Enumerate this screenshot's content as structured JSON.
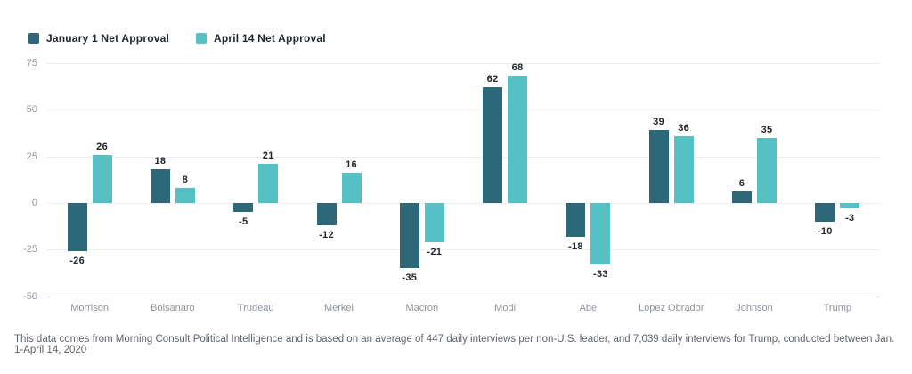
{
  "chart_data": {
    "type": "bar",
    "title": "",
    "categories": [
      "Morrison",
      "Bolsanaro",
      "Trudeau",
      "Merkel",
      "Macron",
      "Modi",
      "Abe",
      "Lopez Obrador",
      "Johnson",
      "Trump"
    ],
    "series": [
      {
        "name": "January 1 Net Approval",
        "color": "#2d6878",
        "values": [
          -26,
          18,
          -5,
          -12,
          -35,
          62,
          -18,
          39,
          6,
          -10
        ]
      },
      {
        "name": "April 14 Net Approval",
        "color": "#55c1c4",
        "values": [
          26,
          8,
          21,
          16,
          -21,
          68,
          -33,
          36,
          35,
          -3
        ]
      }
    ],
    "xlabel": "",
    "ylabel": "",
    "ylim": [
      -50,
      75
    ],
    "yticks": [
      75,
      50,
      25,
      0,
      -25,
      -50
    ],
    "grid": true,
    "legend_position": "top-left",
    "value_labels": true,
    "colors": {
      "gridline": "#ededf0",
      "baseline": "#ccd3e6",
      "axis_text": "#8f959d",
      "value_text": "#20252c"
    }
  },
  "footer": {
    "note": "This data comes from Morning Consult Political Intelligence and is based on an average of 447 daily interviews per non-U.S. leader, and 7,039 daily interviews for Trump, conducted between Jan. 1-April 14, 2020"
  }
}
